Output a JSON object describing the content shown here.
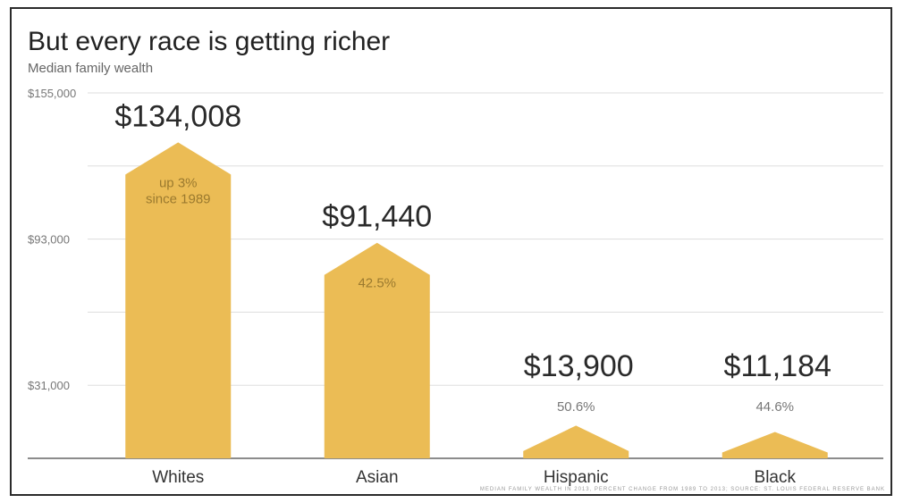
{
  "chart_data": {
    "type": "bar",
    "title": "But every race is getting richer",
    "subtitle": "Median family wealth",
    "categories": [
      "Whites",
      "Asian",
      "Hispanic",
      "Black"
    ],
    "values": [
      134008,
      91440,
      13900,
      11184
    ],
    "value_labels": [
      "$134,008",
      "$91,440",
      "$13,900",
      "$11,184"
    ],
    "change_labels": [
      [
        "up 3%",
        "since 1989"
      ],
      [
        "42.5%"
      ],
      [
        "50.6%"
      ],
      [
        "44.6%"
      ]
    ],
    "yticks": [
      155000,
      93000,
      31000
    ],
    "ytick_labels": [
      "$155,000",
      "$93,000",
      "$31,000"
    ],
    "ylim": [
      0,
      155000
    ],
    "xlabel": "",
    "ylabel": "",
    "grid": true,
    "legend": "none",
    "footnote": "Median family wealth in 2013, percent change from 1989 to 2013; Source: St. Louis Federal Reserve Bank",
    "colors": {
      "bar": "#ebbc55",
      "inner_label": "#9b7a2f",
      "outer_label": "#777777"
    }
  }
}
